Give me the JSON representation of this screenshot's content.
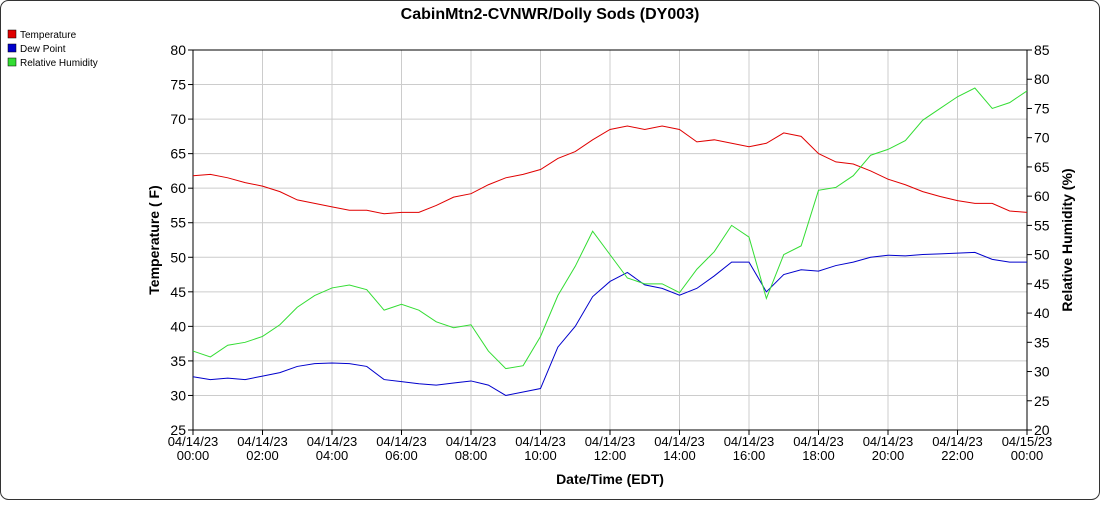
{
  "chart_data": {
    "type": "line",
    "title": "CabinMtn2-CVNWR/Dolly Sods (DY003)",
    "xlabel": "Date/Time (EDT)",
    "ylabel": "Temperature ( F)",
    "y2label": "Relative Humidity (%)",
    "x": [
      0,
      0.5,
      1,
      1.5,
      2,
      2.5,
      3,
      3.5,
      4,
      4.5,
      5,
      5.5,
      6,
      6.5,
      7,
      7.5,
      8,
      8.5,
      9,
      9.5,
      10,
      10.5,
      11,
      11.5,
      12,
      12.5,
      13,
      13.5,
      14,
      14.5,
      15,
      15.5,
      16,
      16.5,
      17,
      17.5,
      18,
      18.5,
      19,
      19.5,
      20,
      20.5,
      21,
      21.5,
      22,
      22.5,
      23,
      23.5,
      24
    ],
    "series": [
      {
        "name": "Temperature",
        "color": "#e00000",
        "axis": "y",
        "values": [
          61.8,
          62,
          61.5,
          60.8,
          60.3,
          59.5,
          58.3,
          57.8,
          57.3,
          56.8,
          56.8,
          56.3,
          56.5,
          56.5,
          57.5,
          58.7,
          59.2,
          60.5,
          61.5,
          62,
          62.7,
          64.3,
          65.3,
          67,
          68.5,
          69,
          68.5,
          69,
          68.5,
          66.7,
          67,
          66.5,
          66,
          66.5,
          68,
          67.5,
          65,
          63.8,
          63.5,
          62.5,
          61.3,
          60.5,
          59.5,
          58.8,
          58.2,
          57.8,
          57.8,
          56.7,
          56.5
        ]
      },
      {
        "name": "Dew Point",
        "color": "#0000cc",
        "axis": "y",
        "values": [
          32.7,
          32.3,
          32.5,
          32.3,
          32.8,
          33.3,
          34.2,
          34.6,
          34.7,
          34.6,
          34.2,
          32.3,
          32,
          31.7,
          31.5,
          31.8,
          32.1,
          31.5,
          30,
          30.5,
          31,
          37,
          40,
          44.3,
          46.5,
          47.8,
          46,
          45.5,
          44.5,
          45.5,
          47.3,
          49.3,
          49.3,
          45,
          47.5,
          48.2,
          48,
          48.8,
          49.3,
          50,
          50.3,
          50.2,
          50.4,
          50.5,
          50.6,
          50.7,
          49.7,
          49.3,
          49.3
        ]
      },
      {
        "name": "Relative Humidity",
        "color": "#33dd33",
        "axis": "y2",
        "values": [
          33.5,
          32.5,
          34.5,
          35,
          36,
          38,
          41,
          43,
          44.3,
          44.8,
          44,
          40.5,
          41.5,
          40.5,
          38.5,
          37.5,
          38,
          33.5,
          30.5,
          31,
          36,
          43,
          48,
          54,
          50,
          46,
          45,
          45,
          43.5,
          47.5,
          50.5,
          55,
          53,
          42.5,
          50,
          51.5,
          61,
          61.5,
          63.5,
          67,
          68,
          69.5,
          73,
          75,
          77,
          78.5,
          75,
          76,
          78
        ]
      }
    ],
    "xlim": [
      0,
      24
    ],
    "xticks": [
      {
        "value": 0,
        "label": "04/14/23 00:00"
      },
      {
        "value": 2,
        "label": "04/14/23 02:00"
      },
      {
        "value": 4,
        "label": "04/14/23 04:00"
      },
      {
        "value": 6,
        "label": "04/14/23 06:00"
      },
      {
        "value": 8,
        "label": "04/14/23 08:00"
      },
      {
        "value": 10,
        "label": "04/14/23 10:00"
      },
      {
        "value": 12,
        "label": "04/14/23 12:00"
      },
      {
        "value": 14,
        "label": "04/14/23 14:00"
      },
      {
        "value": 16,
        "label": "04/14/23 16:00"
      },
      {
        "value": 18,
        "label": "04/14/23 18:00"
      },
      {
        "value": 20,
        "label": "04/14/23 20:00"
      },
      {
        "value": 22,
        "label": "04/14/23 22:00"
      },
      {
        "value": 24,
        "label": "04/15/23 00:00"
      }
    ],
    "ylim": [
      25,
      80
    ],
    "yticks": [
      25,
      30,
      35,
      40,
      45,
      50,
      55,
      60,
      65,
      70,
      75,
      80
    ],
    "y2lim": [
      20,
      85
    ],
    "y2ticks": [
      20,
      25,
      30,
      35,
      40,
      45,
      50,
      55,
      60,
      65,
      70,
      75,
      80,
      85
    ],
    "grid": true,
    "legend": "top-left"
  }
}
